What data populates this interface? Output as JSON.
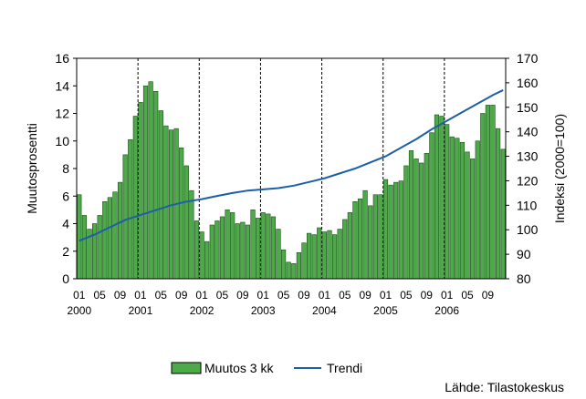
{
  "chart_data": {
    "type": "bar+line",
    "ylabel_left": "Muutosprosentti",
    "ylabel_right": "Indeksi (2000=100)",
    "ylim_left": [
      0,
      16
    ],
    "ylim_right": [
      80,
      170
    ],
    "yticks_left": [
      "0",
      "2",
      "4",
      "6",
      "8",
      "10",
      "12",
      "14",
      "16"
    ],
    "yticks_right": [
      "80",
      "90",
      "100",
      "110",
      "120",
      "130",
      "140",
      "150",
      "160",
      "170"
    ],
    "x_month_labels": [
      "01",
      "05",
      "09"
    ],
    "x_year_labels": [
      "2000",
      "2001",
      "2002",
      "2003",
      "2004",
      "2005",
      "2006"
    ],
    "grid": "vertical dashed at each January",
    "legend_position": "bottom",
    "series": [
      {
        "name": "Muutos 3 kk",
        "kind": "bar",
        "axis": "left",
        "color": "#4caa48",
        "x": [
          "2000-01",
          "2000-02",
          "2000-03",
          "2000-04",
          "2000-05",
          "2000-06",
          "2000-07",
          "2000-08",
          "2000-09",
          "2000-10",
          "2000-11",
          "2000-12",
          "2001-01",
          "2001-02",
          "2001-03",
          "2001-04",
          "2001-05",
          "2001-06",
          "2001-07",
          "2001-08",
          "2001-09",
          "2001-10",
          "2001-11",
          "2001-12",
          "2002-01",
          "2002-02",
          "2002-03",
          "2002-04",
          "2002-05",
          "2002-06",
          "2002-07",
          "2002-08",
          "2002-09",
          "2002-10",
          "2002-11",
          "2002-12",
          "2003-01",
          "2003-02",
          "2003-03",
          "2003-04",
          "2003-05",
          "2003-06",
          "2003-07",
          "2003-08",
          "2003-09",
          "2003-10",
          "2003-11",
          "2003-12",
          "2004-01",
          "2004-02",
          "2004-03",
          "2004-04",
          "2004-05",
          "2004-06",
          "2004-07",
          "2004-08",
          "2004-09",
          "2004-10",
          "2004-11",
          "2004-12",
          "2005-01",
          "2005-02",
          "2005-03",
          "2005-04",
          "2005-05",
          "2005-06",
          "2005-07",
          "2005-08",
          "2005-09",
          "2005-10",
          "2005-11",
          "2005-12",
          "2006-01",
          "2006-02",
          "2006-03",
          "2006-04",
          "2006-05",
          "2006-06",
          "2006-07",
          "2006-08",
          "2006-09",
          "2006-10",
          "2006-11",
          "2006-12"
        ],
        "values": [
          6.1,
          4.6,
          3.6,
          4.0,
          4.6,
          5.6,
          5.9,
          6.3,
          7.0,
          9.0,
          10.1,
          11.8,
          12.8,
          14.0,
          14.3,
          13.6,
          12.2,
          11.1,
          10.8,
          10.9,
          9.5,
          8.2,
          6.4,
          4.2,
          3.4,
          2.7,
          3.9,
          4.2,
          4.5,
          5.0,
          4.8,
          4.0,
          4.1,
          3.9,
          5.0,
          4.4,
          4.8,
          4.7,
          4.5,
          3.6,
          2.1,
          1.2,
          1.1,
          1.9,
          2.6,
          3.3,
          3.2,
          3.7,
          3.4,
          3.5,
          3.2,
          3.6,
          4.3,
          4.8,
          5.6,
          5.8,
          6.4,
          5.3,
          6.1,
          6.1,
          7.2,
          6.8,
          7.0,
          7.1,
          8.2,
          9.3,
          8.7,
          8.4,
          9.1,
          10.6,
          11.9,
          11.8,
          11.2,
          10.3,
          10.2,
          9.9,
          9.2,
          8.7,
          10.0,
          12.0,
          12.6,
          12.6,
          10.9,
          9.4
        ]
      },
      {
        "name": "Trendi",
        "kind": "line",
        "axis": "right",
        "color": "#1c5ea8",
        "x": [
          "2000-01",
          "2000-04",
          "2000-07",
          "2000-10",
          "2001-01",
          "2001-04",
          "2001-07",
          "2001-10",
          "2002-01",
          "2002-04",
          "2002-07",
          "2002-10",
          "2003-01",
          "2003-04",
          "2003-07",
          "2003-10",
          "2004-01",
          "2004-04",
          "2004-07",
          "2004-10",
          "2005-01",
          "2005-04",
          "2005-07",
          "2005-10",
          "2006-01",
          "2006-04",
          "2006-07",
          "2006-10",
          "2006-12"
        ],
        "values": [
          95.5,
          98.0,
          101.0,
          104.0,
          106.0,
          108.0,
          110.0,
          111.5,
          112.5,
          113.8,
          115.0,
          116.0,
          116.5,
          117.0,
          118.0,
          119.5,
          121.0,
          123.0,
          125.0,
          127.5,
          130.0,
          133.5,
          137.0,
          141.0,
          144.5,
          148.0,
          151.5,
          155.0,
          157.0
        ]
      }
    ]
  },
  "legend": {
    "bar_label": "Muutos 3 kk",
    "line_label": "Trendi"
  },
  "source": "Lähde: Tilastokeskus"
}
